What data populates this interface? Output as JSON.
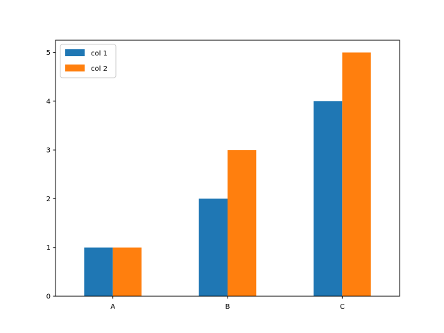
{
  "chart_data": {
    "type": "bar",
    "categories": [
      "A",
      "B",
      "C"
    ],
    "series": [
      {
        "name": "col 1",
        "values": [
          1,
          2,
          4
        ],
        "color": "#1f77b4"
      },
      {
        "name": "col 2",
        "values": [
          1,
          3,
          5
        ],
        "color": "#ff7f0e"
      }
    ],
    "title": "",
    "xlabel": "",
    "ylabel": "",
    "ylim": [
      0,
      5.25
    ],
    "yticks": [
      0,
      1,
      2,
      3,
      4,
      5
    ],
    "grid": false,
    "legend_position": "top-left"
  }
}
